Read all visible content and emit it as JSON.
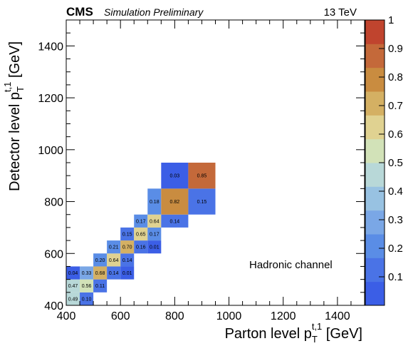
{
  "header": {
    "experiment": "CMS",
    "status": "Simulation Preliminary",
    "energy": "13 TeV"
  },
  "annotation": "Hadronic channel",
  "colors": {
    "palette": [
      "#3b5ee6",
      "#4a73e6",
      "#5a8de6",
      "#7aa7e6",
      "#98c2e2",
      "#b8d8d8",
      "#d2e2b8",
      "#e0d291",
      "#d4b063",
      "#c98c40",
      "#c4693a",
      "#c0442e"
    ]
  },
  "chart_data": {
    "type": "heatmap",
    "title": "",
    "xlabel": {
      "main": "Parton level p",
      "sub": "T",
      "sup": "t,1",
      "unit": " [GeV]"
    },
    "ylabel": {
      "main": "Detector level p",
      "sub": "T",
      "sup": "t,1",
      "unit": " [GeV]"
    },
    "xlim": [
      400,
      1500
    ],
    "ylim": [
      400,
      1500
    ],
    "x_ticks": [
      400,
      600,
      800,
      1000,
      1200,
      1400
    ],
    "y_ticks": [
      400,
      600,
      800,
      1000,
      1200,
      1400
    ],
    "bin_edges": [
      400,
      450,
      500,
      550,
      600,
      650,
      700,
      750,
      800,
      850,
      950,
      1200,
      1500
    ],
    "zlim": [
      0,
      1
    ],
    "colorbar_ticks": [
      "0.1",
      "0.2",
      "0.3",
      "0.4",
      "0.5",
      "0.6",
      "0.7",
      "0.8",
      "0.9",
      "1"
    ],
    "cells": [
      {
        "x": [
          400,
          450
        ],
        "y": [
          400,
          450
        ],
        "value": 0.49,
        "label": "0.49"
      },
      {
        "x": [
          450,
          500
        ],
        "y": [
          400,
          450
        ],
        "value": 0.1,
        "label": "0.10"
      },
      {
        "x": [
          400,
          450
        ],
        "y": [
          450,
          500
        ],
        "value": 0.47,
        "label": "0.47"
      },
      {
        "x": [
          450,
          500
        ],
        "y": [
          450,
          500
        ],
        "value": 0.56,
        "label": "0.56"
      },
      {
        "x": [
          500,
          550
        ],
        "y": [
          450,
          500
        ],
        "value": 0.11,
        "label": "0.11"
      },
      {
        "x": [
          400,
          450
        ],
        "y": [
          500,
          550
        ],
        "value": 0.04,
        "label": "0.04"
      },
      {
        "x": [
          450,
          500
        ],
        "y": [
          500,
          550
        ],
        "value": 0.33,
        "label": "0.33"
      },
      {
        "x": [
          500,
          550
        ],
        "y": [
          500,
          550
        ],
        "value": 0.68,
        "label": "0.68"
      },
      {
        "x": [
          550,
          600
        ],
        "y": [
          500,
          550
        ],
        "value": 0.14,
        "label": "0.14"
      },
      {
        "x": [
          600,
          650
        ],
        "y": [
          500,
          550
        ],
        "value": 0.01,
        "label": "0.01"
      },
      {
        "x": [
          500,
          550
        ],
        "y": [
          550,
          600
        ],
        "value": 0.2,
        "label": "0.20"
      },
      {
        "x": [
          550,
          600
        ],
        "y": [
          550,
          600
        ],
        "value": 0.64,
        "label": "0.64"
      },
      {
        "x": [
          600,
          650
        ],
        "y": [
          550,
          600
        ],
        "value": 0.14,
        "label": "0.14"
      },
      {
        "x": [
          550,
          600
        ],
        "y": [
          600,
          650
        ],
        "value": 0.21,
        "label": "0.21"
      },
      {
        "x": [
          600,
          650
        ],
        "y": [
          600,
          650
        ],
        "value": 0.7,
        "label": "0.70"
      },
      {
        "x": [
          650,
          700
        ],
        "y": [
          600,
          650
        ],
        "value": 0.16,
        "label": "0.16"
      },
      {
        "x": [
          700,
          750
        ],
        "y": [
          600,
          650
        ],
        "value": 0.01,
        "label": "0.01"
      },
      {
        "x": [
          600,
          650
        ],
        "y": [
          650,
          700
        ],
        "value": 0.15,
        "label": "0.15"
      },
      {
        "x": [
          650,
          700
        ],
        "y": [
          650,
          700
        ],
        "value": 0.65,
        "label": "0.65"
      },
      {
        "x": [
          700,
          750
        ],
        "y": [
          650,
          700
        ],
        "value": 0.17,
        "label": "0.17"
      },
      {
        "x": [
          650,
          700
        ],
        "y": [
          700,
          750
        ],
        "value": 0.17,
        "label": "0.17"
      },
      {
        "x": [
          700,
          750
        ],
        "y": [
          700,
          750
        ],
        "value": 0.64,
        "label": "0.64"
      },
      {
        "x": [
          750,
          850
        ],
        "y": [
          700,
          750
        ],
        "value": 0.14,
        "label": "0.14"
      },
      {
        "x": [
          700,
          750
        ],
        "y": [
          750,
          850
        ],
        "value": 0.18,
        "label": "0.18"
      },
      {
        "x": [
          750,
          850
        ],
        "y": [
          750,
          850
        ],
        "value": 0.82,
        "label": "0.82"
      },
      {
        "x": [
          850,
          950
        ],
        "y": [
          750,
          850
        ],
        "value": 0.15,
        "label": "0.15"
      },
      {
        "x": [
          750,
          850
        ],
        "y": [
          850,
          950
        ],
        "value": 0.03,
        "label": "0.03"
      },
      {
        "x": [
          850,
          950
        ],
        "y": [
          850,
          950
        ],
        "value": 0.85,
        "label": "0.85"
      }
    ]
  }
}
